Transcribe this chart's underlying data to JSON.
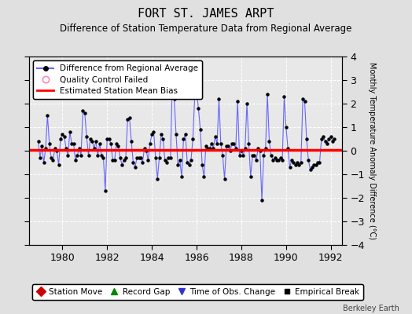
{
  "title": "FORT ST. JAMES ARPT",
  "subtitle": "Difference of Station Temperature Data from Regional Average",
  "ylabel_right": "Monthly Temperature Anomaly Difference (°C)",
  "xlim": [
    1978.5,
    1992.5
  ],
  "ylim": [
    -4,
    4
  ],
  "yticks": [
    -4,
    -3,
    -2,
    -1,
    0,
    1,
    2,
    3,
    4
  ],
  "xticks": [
    1980,
    1982,
    1984,
    1986,
    1988,
    1990,
    1992
  ],
  "bias_value": 0.05,
  "background_color": "#e0e0e0",
  "plot_bg_color": "#e8e8e8",
  "line_color": "#6666ff",
  "marker_color": "#000000",
  "bias_color": "#ff0000",
  "title_fontsize": 11,
  "subtitle_fontsize": 8.5,
  "watermark": "Berkeley Earth",
  "data_x": [
    1978.917,
    1979.0,
    1979.083,
    1979.167,
    1979.25,
    1979.333,
    1979.417,
    1979.5,
    1979.583,
    1979.667,
    1979.75,
    1979.833,
    1979.917,
    1980.0,
    1980.083,
    1980.167,
    1980.25,
    1980.333,
    1980.417,
    1980.5,
    1980.583,
    1980.667,
    1980.75,
    1980.833,
    1980.917,
    1981.0,
    1981.083,
    1981.167,
    1981.25,
    1981.333,
    1981.417,
    1981.5,
    1981.583,
    1981.667,
    1981.75,
    1981.833,
    1981.917,
    1982.0,
    1982.083,
    1982.167,
    1982.25,
    1982.333,
    1982.417,
    1982.5,
    1982.583,
    1982.667,
    1982.75,
    1982.833,
    1982.917,
    1983.0,
    1983.083,
    1983.167,
    1983.25,
    1983.333,
    1983.417,
    1983.5,
    1983.583,
    1983.667,
    1983.75,
    1983.833,
    1983.917,
    1984.0,
    1984.083,
    1984.167,
    1984.25,
    1984.333,
    1984.417,
    1984.5,
    1984.583,
    1984.667,
    1984.75,
    1984.833,
    1984.917,
    1985.0,
    1985.083,
    1985.167,
    1985.25,
    1985.333,
    1985.417,
    1985.5,
    1985.583,
    1985.667,
    1985.75,
    1985.833,
    1985.917,
    1986.0,
    1986.083,
    1986.167,
    1986.25,
    1986.333,
    1986.417,
    1986.5,
    1986.583,
    1986.667,
    1986.75,
    1986.833,
    1986.917,
    1987.0,
    1987.083,
    1987.167,
    1987.25,
    1987.333,
    1987.417,
    1987.5,
    1987.583,
    1987.667,
    1987.75,
    1987.833,
    1987.917,
    1988.0,
    1988.083,
    1988.167,
    1988.25,
    1988.333,
    1988.417,
    1988.5,
    1988.583,
    1988.667,
    1988.75,
    1988.833,
    1988.917,
    1989.0,
    1989.083,
    1989.167,
    1989.25,
    1989.333,
    1989.417,
    1989.5,
    1989.583,
    1989.667,
    1989.75,
    1989.833,
    1989.917,
    1990.0,
    1990.083,
    1990.167,
    1990.25,
    1990.333,
    1990.417,
    1990.5,
    1990.583,
    1990.667,
    1990.75,
    1990.833,
    1990.917,
    1991.0,
    1991.083,
    1991.167,
    1991.25,
    1991.333,
    1991.417,
    1991.5,
    1991.583,
    1991.667,
    1991.75,
    1991.833,
    1991.917,
    1992.0,
    1992.083,
    1992.167
  ],
  "data_y": [
    0.4,
    -0.3,
    0.2,
    -0.5,
    0.1,
    1.5,
    0.3,
    -0.3,
    -0.4,
    0.1,
    0.0,
    -0.6,
    0.5,
    0.7,
    0.6,
    0.1,
    -0.2,
    0.8,
    0.3,
    0.3,
    -0.4,
    -0.2,
    0.1,
    -0.2,
    1.7,
    1.6,
    0.6,
    -0.2,
    0.5,
    0.4,
    0.1,
    0.4,
    -0.2,
    0.3,
    -0.2,
    -0.3,
    -1.7,
    0.5,
    0.5,
    0.3,
    -0.4,
    -0.4,
    0.3,
    0.2,
    -0.3,
    -0.6,
    -0.4,
    -0.3,
    1.35,
    1.4,
    0.4,
    -0.5,
    -0.7,
    -0.3,
    -0.3,
    -0.3,
    -0.5,
    0.1,
    0.0,
    -0.4,
    0.3,
    0.7,
    0.8,
    -0.3,
    -1.2,
    -0.3,
    0.7,
    0.5,
    -0.4,
    -0.5,
    -0.3,
    -0.3,
    3.0,
    2.2,
    0.7,
    -0.6,
    -0.4,
    -1.1,
    0.5,
    0.7,
    -0.5,
    -0.6,
    -0.4,
    0.5,
    2.3,
    2.5,
    1.8,
    0.9,
    -0.6,
    -1.1,
    0.2,
    0.1,
    0.1,
    0.3,
    0.1,
    0.6,
    0.3,
    2.2,
    0.3,
    -0.2,
    -1.2,
    0.2,
    0.2,
    0.0,
    0.3,
    0.3,
    0.1,
    2.1,
    -0.2,
    0.0,
    -0.2,
    0.1,
    2.0,
    0.3,
    -1.1,
    -0.2,
    -0.2,
    -0.4,
    0.1,
    0.0,
    -2.1,
    -0.2,
    0.1,
    2.4,
    0.4,
    -0.2,
    -0.4,
    -0.3,
    -0.4,
    -0.4,
    -0.3,
    -0.4,
    2.3,
    1.0,
    0.1,
    -0.7,
    -0.4,
    -0.5,
    -0.6,
    -0.5,
    -0.6,
    -0.5,
    2.2,
    2.1,
    0.5,
    -0.4,
    -0.8,
    -0.7,
    -0.6,
    -0.6,
    -0.5,
    -0.5,
    0.5,
    0.6,
    0.4,
    0.3,
    0.5,
    0.6,
    0.4,
    0.5
  ]
}
